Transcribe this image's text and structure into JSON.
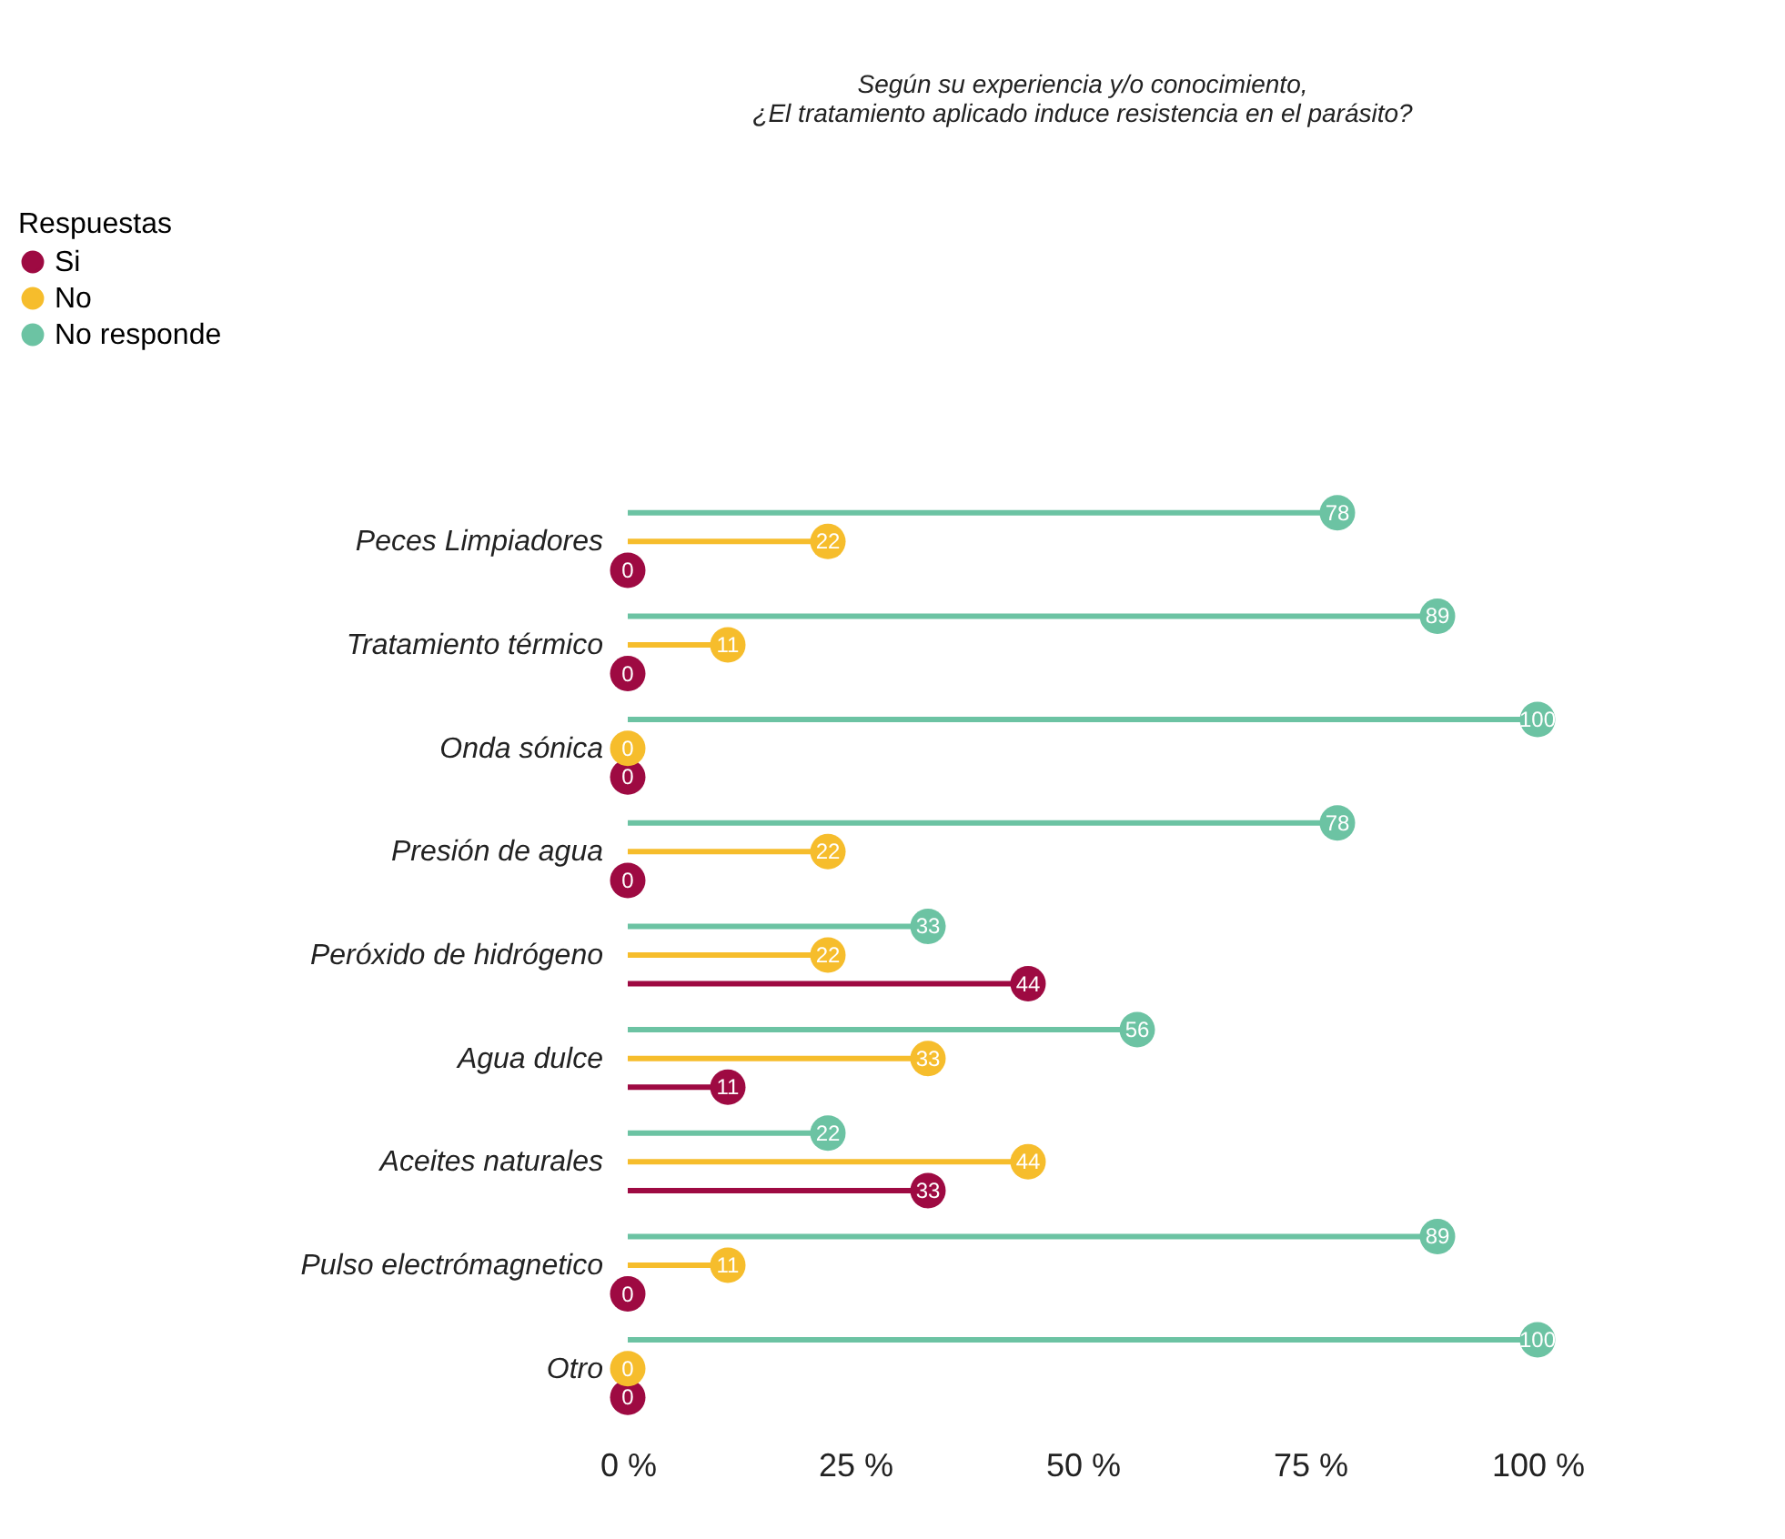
{
  "chart_data": {
    "type": "lollipop",
    "orientation": "horizontal",
    "title": [
      "Según su experiencia y/o conocimiento,",
      "¿El tratamiento aplicado induce resistencia en el parásito?"
    ],
    "legend_title": "Respuestas",
    "legend": "top left",
    "data_labels": true,
    "grid": false,
    "marker": "circle",
    "categories": [
      "Peces Limpiadores",
      "Tratamiento térmico",
      "Onda sónica",
      "Presión de agua",
      "Peróxido de hidrógeno",
      "Agua dulce",
      "Aceites naturales",
      "Pulso electrómagnetico",
      "Otro"
    ],
    "xlim": [
      0,
      100
    ],
    "xticks": [
      {
        "value": 0,
        "label": "0 %"
      },
      {
        "value": 25,
        "label": "25 %"
      },
      {
        "value": 50,
        "label": "50 %"
      },
      {
        "value": 75,
        "label": "75 %"
      },
      {
        "value": 100,
        "label": "100 %"
      }
    ],
    "series": [
      {
        "name": "Si",
        "color": "#9e0a42",
        "values": [
          0,
          0,
          0,
          0,
          44,
          11,
          33,
          0,
          0
        ]
      },
      {
        "name": "No",
        "color": "#f6bd2c",
        "values": [
          22,
          11,
          0,
          22,
          22,
          33,
          44,
          11,
          0
        ]
      },
      {
        "name": "No responde",
        "color": "#6cc3a3",
        "values": [
          78,
          89,
          100,
          78,
          33,
          56,
          22,
          89,
          100
        ]
      }
    ]
  }
}
